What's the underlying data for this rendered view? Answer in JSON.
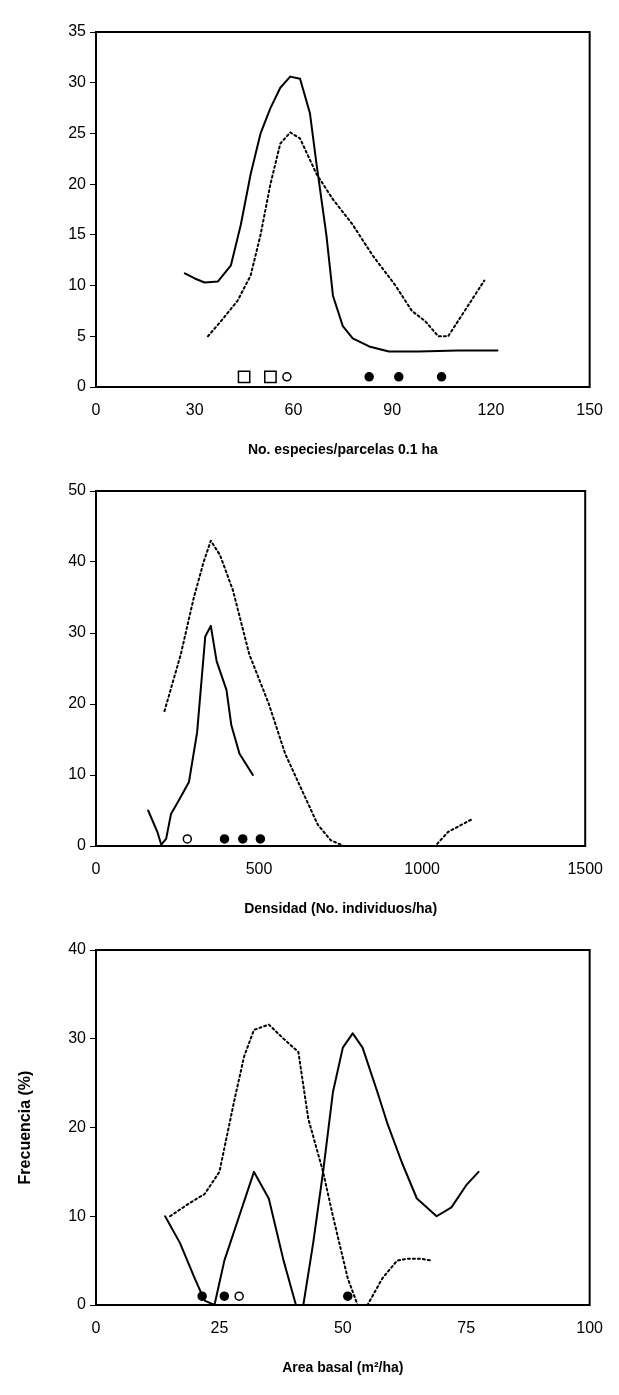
{
  "chart_data": [
    {
      "type": "line",
      "xlabel": "No. especies/parcelas 0.1 ha",
      "xlim": [
        0,
        150
      ],
      "xticks": [
        0,
        30,
        60,
        90,
        120,
        150
      ],
      "ylim": [
        0,
        35
      ],
      "yticks": [
        0,
        5,
        10,
        15,
        20,
        25,
        30,
        35
      ],
      "grid": false,
      "legend": false,
      "series": [
        {
          "type": "line",
          "line_style": "solid",
          "marker": "none",
          "color": "#000000",
          "x": [
            27,
            30,
            33,
            37,
            41,
            44,
            47,
            50,
            53,
            56,
            59,
            62,
            65,
            67,
            70,
            72,
            75,
            78,
            83,
            89,
            98,
            110,
            122
          ],
          "values": [
            11.2,
            10.7,
            10.3,
            10.4,
            12,
            16,
            21,
            25,
            27.5,
            29.5,
            30.6,
            30.4,
            27,
            22,
            15,
            9,
            6,
            4.8,
            4,
            3.5,
            3.5,
            3.6,
            3.6
          ]
        },
        {
          "type": "line",
          "line_style": "dotted",
          "marker": "none",
          "color": "#000000",
          "x": [
            34,
            38,
            43,
            47,
            50,
            53,
            56,
            59,
            62,
            67,
            72,
            78,
            84,
            91,
            96,
            100,
            104,
            107,
            112,
            118
          ],
          "values": [
            5,
            6.5,
            8.5,
            11,
            15,
            20,
            24,
            25.1,
            24.5,
            21,
            18.5,
            16,
            13,
            10,
            7.5,
            6.5,
            5,
            5,
            7.5,
            10.5
          ]
        },
        {
          "type": "scatter",
          "marker": "square",
          "color": "#ffffff",
          "x": [
            45,
            53
          ],
          "values": [
            1,
            1
          ]
        },
        {
          "type": "scatter",
          "marker": "circle",
          "color": "#ffffff",
          "x": [
            58
          ],
          "values": [
            1
          ]
        },
        {
          "type": "scatter",
          "marker": "circle",
          "color": "#000000",
          "x": [
            83,
            92,
            105
          ],
          "values": [
            1,
            1,
            1
          ]
        }
      ]
    },
    {
      "type": "line",
      "xlabel": "Densidad (No. individuos/ha)",
      "xlim": [
        0,
        1500
      ],
      "xticks": [
        0,
        500,
        1000,
        1500
      ],
      "ylim": [
        0,
        50
      ],
      "yticks": [
        0,
        10,
        20,
        30,
        40,
        50
      ],
      "grid": false,
      "legend": false,
      "series": [
        {
          "type": "line",
          "line_style": "solid",
          "marker": "none",
          "color": "#000000",
          "x": [
            160,
            188,
            200,
            215,
            230,
            255,
            285,
            310,
            335,
            352,
            370,
            400,
            415,
            440,
            481
          ],
          "values": [
            5,
            2,
            0.2,
            1,
            4.5,
            6.5,
            9,
            16,
            29.5,
            31,
            26,
            22,
            17,
            13,
            10
          ]
        },
        {
          "type": "line",
          "line_style": "dotted",
          "marker": "none",
          "color": "#000000",
          "x": [
            210,
            260,
            300,
            330,
            352,
            380,
            420,
            470,
            530,
            580,
            630,
            680,
            720,
            760,
            900,
            1000,
            1040,
            1080,
            1150
          ],
          "values": [
            19,
            27,
            35,
            40,
            43,
            41,
            36,
            27,
            20,
            13,
            8,
            3,
            0.8,
            0,
            0,
            0,
            0,
            2,
            3.7
          ]
        },
        {
          "type": "scatter",
          "marker": "circle",
          "color": "#ffffff",
          "x": [
            280
          ],
          "values": [
            1
          ]
        },
        {
          "type": "scatter",
          "marker": "circle",
          "color": "#000000",
          "x": [
            394,
            450,
            504
          ],
          "values": [
            1,
            1,
            1
          ]
        }
      ]
    },
    {
      "type": "line",
      "xlabel": "Area basal (m²/ha)",
      "ylabel": "Frecuencia (%)",
      "xlim": [
        0,
        100
      ],
      "xticks": [
        0,
        25,
        50,
        75,
        100
      ],
      "ylim": [
        0,
        40
      ],
      "yticks": [
        0,
        10,
        20,
        30,
        40
      ],
      "grid": false,
      "legend": false,
      "series": [
        {
          "type": "line",
          "line_style": "solid",
          "marker": "none",
          "color": "#000000",
          "x": [
            14,
            17,
            20,
            22,
            24,
            26,
            29,
            32,
            35,
            38,
            40.5,
            42,
            44,
            46,
            48,
            50,
            52,
            54,
            57,
            59,
            62,
            65,
            69,
            72,
            75,
            77.5
          ],
          "values": [
            10,
            7,
            3,
            0.5,
            0,
            5,
            10,
            15,
            12,
            5,
            0,
            0,
            7,
            15,
            24,
            29,
            30.6,
            29,
            24,
            20.5,
            16,
            12,
            10,
            11,
            13.5,
            15
          ]
        },
        {
          "type": "line",
          "line_style": "dotted",
          "marker": "none",
          "color": "#000000",
          "x": [
            15,
            19,
            22,
            25,
            28,
            30,
            32,
            35,
            38,
            41,
            43,
            46,
            48,
            51,
            53,
            55,
            58,
            61,
            63,
            66,
            68
          ],
          "values": [
            10,
            11.5,
            12.5,
            15,
            23,
            28,
            31,
            31.6,
            30,
            28.5,
            21,
            15,
            10,
            3,
            0,
            0,
            3,
            5,
            5.2,
            5.2,
            5
          ]
        },
        {
          "type": "scatter",
          "marker": "circle",
          "color": "#000000",
          "x": [
            21.5,
            26,
            51
          ],
          "values": [
            1,
            1,
            1
          ]
        },
        {
          "type": "scatter",
          "marker": "circle",
          "color": "#ffffff",
          "x": [
            29
          ],
          "values": [
            1
          ]
        }
      ]
    }
  ]
}
